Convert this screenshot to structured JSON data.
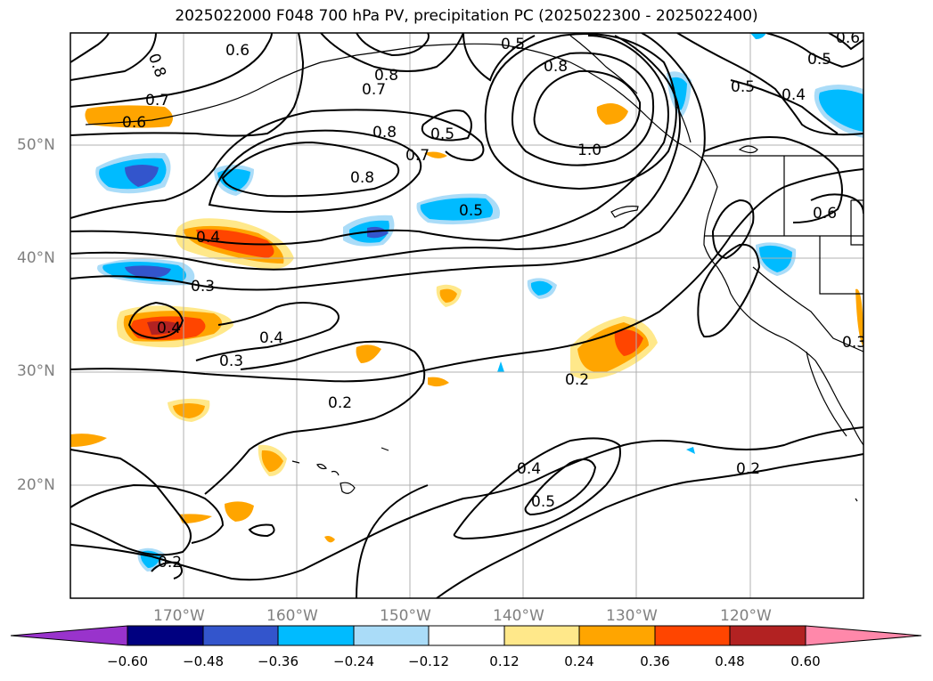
{
  "title": "2025022000 F048 700 hPa PV, precipitation PC (2025022300 - 2025022400)",
  "map": {
    "lat_labels": [
      "50°N",
      "40°N",
      "30°N",
      "20°N"
    ],
    "lon_labels": [
      "170°W",
      "160°W",
      "150°W",
      "140°W",
      "130°W",
      "120°W"
    ],
    "pv_contour_labels": [
      "0.6",
      "0.8",
      "0.8",
      "0.7",
      "0.5",
      "0.8",
      "0.6",
      "0.7",
      "0.6",
      "0.5",
      "0.7",
      "0.8",
      "1.0",
      "0.5",
      "0.4",
      "0.5",
      "0.8",
      "0.4",
      "0.3",
      "0.4",
      "0.4",
      "0.3",
      "0.2",
      "0.2",
      "0.4",
      "0.5",
      "0.2",
      "0.5",
      "0.6",
      "0.3",
      "0.2"
    ]
  },
  "colorbar": {
    "ticks": [
      "−0.60",
      "−0.48",
      "−0.36",
      "−0.24",
      "−0.12",
      "0.12",
      "0.24",
      "0.36",
      "0.48",
      "0.60"
    ],
    "colors": [
      "#9933cc",
      "#000080",
      "#3355cc",
      "#00bbff",
      "#aadcf8",
      "#ffffff",
      "#ffe88a",
      "#ffa500",
      "#ff4500",
      "#b22222",
      "#ff88aa"
    ]
  }
}
